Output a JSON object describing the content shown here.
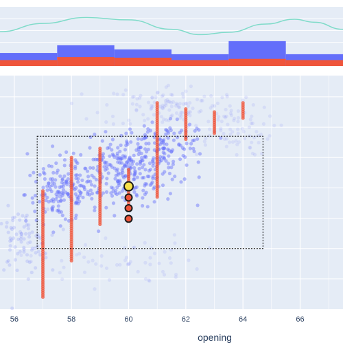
{
  "chart_data": [
    {
      "type": "area",
      "panel": "marginal",
      "series": [
        {
          "name": "",
          "color": "#636efa",
          "bins": [
            [
              55.5,
              57.5,
              0.22
            ],
            [
              57.5,
              59.5,
              0.35
            ],
            [
              59.5,
              61.5,
              0.28
            ],
            [
              61.5,
              63.5,
              0.2
            ],
            [
              63.5,
              65.5,
              0.42
            ],
            [
              65.5,
              67.5,
              0.2
            ]
          ]
        },
        {
          "name": "",
          "color": "#ef553b",
          "bins": [
            [
              55.5,
              57.5,
              0.1
            ],
            [
              57.5,
              59.5,
              0.15
            ],
            [
              59.5,
              61.5,
              0.14
            ],
            [
              61.5,
              63.5,
              0.1
            ],
            [
              63.5,
              65.5,
              0.12
            ],
            [
              65.5,
              67.5,
              0.1
            ]
          ]
        }
      ],
      "kde": {
        "color": "#7fdbc9",
        "points": [
          [
            55.5,
            0.58
          ],
          [
            57,
            0.72
          ],
          [
            58.5,
            0.82
          ],
          [
            60,
            0.78
          ],
          [
            61.5,
            0.62
          ],
          [
            62.5,
            0.53
          ],
          [
            63.5,
            0.57
          ],
          [
            64.8,
            0.71
          ],
          [
            65.8,
            0.79
          ],
          [
            66.5,
            0.74
          ],
          [
            67.5,
            0.62
          ]
        ]
      }
    },
    {
      "type": "scatter",
      "panel": "main",
      "xlabel": "opening",
      "ylabel": "",
      "xlim": [
        55.5,
        67.5
      ],
      "ylim": [
        0,
        7.7
      ],
      "grid": true,
      "x_ticks": [
        "56",
        "58",
        "60",
        "62",
        "64",
        "66"
      ],
      "y_gridlines": [
        1,
        2,
        3,
        4,
        5,
        6,
        7
      ],
      "series": [
        {
          "name": "",
          "color": "#636efa",
          "note": "dense blue point cloud",
          "clusters": [
            {
              "cx": 59.8,
              "cy": 4.5,
              "sx": 1.6,
              "sy": 0.9,
              "n": 260,
              "op": 0.45
            },
            {
              "cx": 57.6,
              "cy": 3.8,
              "sx": 1.0,
              "sy": 0.8,
              "n": 140,
              "op": 0.45
            },
            {
              "cx": 61.2,
              "cy": 5.4,
              "sx": 1.4,
              "sy": 0.6,
              "n": 120,
              "op": 0.45
            },
            {
              "cx": 56.2,
              "cy": 2.2,
              "sx": 0.8,
              "sy": 0.9,
              "n": 80,
              "op": 0.18
            },
            {
              "cx": 61.5,
              "cy": 6.7,
              "sx": 2.0,
              "sy": 0.6,
              "n": 120,
              "op": 0.12
            },
            {
              "cx": 63.5,
              "cy": 5.9,
              "sx": 1.3,
              "sy": 0.7,
              "n": 70,
              "op": 0.12
            },
            {
              "cx": 59.5,
              "cy": 1.6,
              "sx": 2.5,
              "sy": 0.7,
              "n": 60,
              "op": 0.12
            }
          ]
        },
        {
          "name": "",
          "color": "#ef553b",
          "note": "vertical red stacks at integer x",
          "stacks": [
            {
              "x": 57,
              "y0": 0.4,
              "y1": 3.9
            },
            {
              "x": 58,
              "y0": 1.6,
              "y1": 5.0
            },
            {
              "x": 59,
              "y0": 2.8,
              "y1": 5.3
            },
            {
              "x": 60,
              "y0": 3.5,
              "y1": 4.6
            },
            {
              "x": 61,
              "y0": 3.7,
              "y1": 6.8
            },
            {
              "x": 62,
              "y0": 5.6,
              "y1": 6.6
            },
            {
              "x": 63,
              "y0": 5.8,
              "y1": 6.5
            },
            {
              "x": 64,
              "y0": 6.3,
              "y1": 6.8
            }
          ]
        }
      ],
      "selection_box": {
        "x0": 56.8,
        "x1": 64.7,
        "y0": 2.0,
        "y1": 5.7
      },
      "highlighted_points": [
        {
          "x": 60.0,
          "y": 4.05,
          "color": "#f7e04a"
        },
        {
          "x": 60.0,
          "y": 3.68,
          "color": "#ef553b"
        },
        {
          "x": 60.0,
          "y": 3.33,
          "color": "#ef553b"
        },
        {
          "x": 60.0,
          "y": 2.98,
          "color": "#ef553b"
        }
      ]
    }
  ],
  "colors": {
    "plot_bg": "#e5ecf6",
    "grid": "#ffffff",
    "axis_text": "#2a3f5f"
  }
}
